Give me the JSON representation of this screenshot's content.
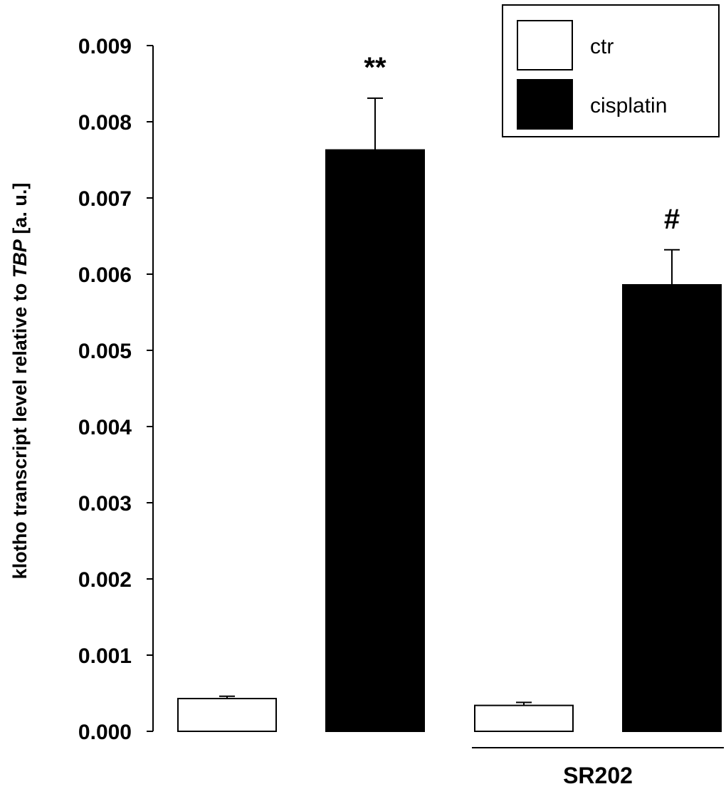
{
  "chart_data": {
    "type": "bar",
    "categories": [
      "",
      "",
      "",
      ""
    ],
    "series": [
      {
        "name": "ctr",
        "color": "#ffffff",
        "values": [
          0.00043,
          null,
          0.00034,
          null
        ],
        "errors": [
          3e-05,
          null,
          4e-05,
          null
        ]
      },
      {
        "name": "cisplatin",
        "color": "#000000",
        "values": [
          null,
          0.00763,
          null,
          0.00586
        ],
        "errors": [
          null,
          0.00068,
          null,
          0.00046
        ]
      }
    ],
    "ylabel_parts": [
      {
        "text": "klotho transcript level relative to ",
        "italic": false
      },
      {
        "text": "TBP",
        "italic": true
      },
      {
        "text": " [a. u.]",
        "italic": false
      }
    ],
    "ylim": [
      0,
      0.009
    ],
    "yticks": [
      "0.000",
      "0.001",
      "0.002",
      "0.003",
      "0.004",
      "0.005",
      "0.006",
      "0.007",
      "0.008",
      "0.009"
    ],
    "annotations": [
      {
        "text": "**",
        "bar_index": 1
      },
      {
        "text": "#",
        "bar_index": 3
      }
    ],
    "group_labels": [
      {
        "text": "SR202",
        "bar_indices": [
          2,
          3
        ]
      }
    ],
    "legend": {
      "position": "top-right",
      "entries": [
        "ctr",
        "cisplatin"
      ]
    },
    "grid": false
  }
}
